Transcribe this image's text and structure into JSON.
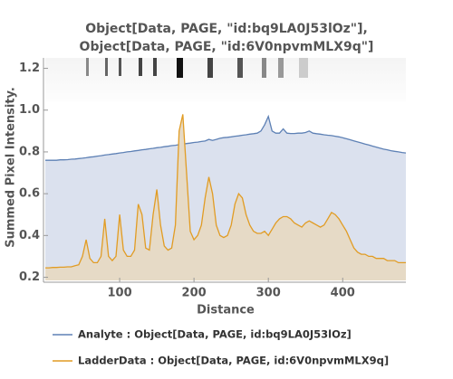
{
  "chart_data": {
    "type": "line",
    "title": [
      "Object[Data, PAGE, \"id:bq9LA0J53lOz\"],",
      "Object[Data, PAGE, \"id:6V0npvmMLX9q\"]"
    ],
    "x_label": "Distance",
    "y_label": "Summed Pixel Intensity.",
    "x": [
      0,
      5,
      10,
      15,
      20,
      25,
      30,
      35,
      40,
      45,
      50,
      55,
      60,
      65,
      70,
      75,
      80,
      85,
      90,
      95,
      100,
      105,
      110,
      115,
      120,
      125,
      130,
      135,
      140,
      145,
      150,
      155,
      160,
      165,
      170,
      175,
      180,
      185,
      190,
      195,
      200,
      205,
      210,
      215,
      220,
      225,
      230,
      235,
      240,
      245,
      250,
      255,
      260,
      265,
      270,
      275,
      280,
      285,
      290,
      295,
      300,
      305,
      310,
      315,
      320,
      325,
      330,
      335,
      340,
      345,
      350,
      355,
      360,
      365,
      370,
      375,
      380,
      385,
      390,
      395,
      400,
      405,
      410,
      415,
      420,
      425,
      430,
      435,
      440,
      445,
      450,
      455,
      460,
      465,
      470,
      475,
      480,
      485
    ],
    "series": [
      {
        "name": "Analyte : Object[Data, PAGE, id:bq9LA0J53lOz]",
        "color": "#5e81b5",
        "fill": "#dbe1ee",
        "values": [
          0.76,
          0.76,
          0.76,
          0.76,
          0.762,
          0.762,
          0.763,
          0.765,
          0.766,
          0.768,
          0.77,
          0.772,
          0.775,
          0.777,
          0.78,
          0.782,
          0.785,
          0.787,
          0.79,
          0.792,
          0.795,
          0.797,
          0.8,
          0.802,
          0.805,
          0.807,
          0.81,
          0.812,
          0.815,
          0.817,
          0.82,
          0.822,
          0.825,
          0.827,
          0.83,
          0.832,
          0.835,
          0.837,
          0.84,
          0.842,
          0.845,
          0.847,
          0.85,
          0.852,
          0.86,
          0.855,
          0.86,
          0.865,
          0.868,
          0.87,
          0.872,
          0.875,
          0.877,
          0.88,
          0.882,
          0.885,
          0.887,
          0.89,
          0.9,
          0.93,
          0.97,
          0.9,
          0.89,
          0.89,
          0.91,
          0.89,
          0.888,
          0.888,
          0.89,
          0.89,
          0.893,
          0.9,
          0.89,
          0.887,
          0.885,
          0.882,
          0.88,
          0.878,
          0.875,
          0.872,
          0.868,
          0.863,
          0.858,
          0.853,
          0.848,
          0.843,
          0.838,
          0.833,
          0.828,
          0.823,
          0.818,
          0.813,
          0.81,
          0.806,
          0.803,
          0.8,
          0.797,
          0.795
        ]
      },
      {
        "name": "LadderData : Object[Data, PAGE, id:6V0npvmMLX9q]",
        "color": "#e19c24",
        "fill": "#e6dac6",
        "values": [
          0.245,
          0.245,
          0.247,
          0.247,
          0.248,
          0.248,
          0.25,
          0.25,
          0.255,
          0.26,
          0.3,
          0.38,
          0.29,
          0.27,
          0.27,
          0.3,
          0.48,
          0.3,
          0.28,
          0.3,
          0.5,
          0.33,
          0.3,
          0.3,
          0.33,
          0.55,
          0.5,
          0.34,
          0.33,
          0.5,
          0.62,
          0.45,
          0.35,
          0.33,
          0.34,
          0.45,
          0.9,
          0.98,
          0.7,
          0.42,
          0.38,
          0.4,
          0.45,
          0.58,
          0.68,
          0.6,
          0.45,
          0.4,
          0.39,
          0.4,
          0.45,
          0.55,
          0.6,
          0.58,
          0.5,
          0.45,
          0.42,
          0.41,
          0.41,
          0.42,
          0.4,
          0.43,
          0.46,
          0.48,
          0.49,
          0.49,
          0.48,
          0.46,
          0.45,
          0.44,
          0.46,
          0.47,
          0.46,
          0.45,
          0.44,
          0.45,
          0.48,
          0.51,
          0.5,
          0.48,
          0.45,
          0.42,
          0.38,
          0.34,
          0.32,
          0.31,
          0.31,
          0.3,
          0.3,
          0.29,
          0.29,
          0.29,
          0.28,
          0.28,
          0.28,
          0.27,
          0.27,
          0.27
        ]
      }
    ],
    "xlim": [
      0,
      485
    ],
    "xticks": [
      100,
      200,
      300,
      400
    ],
    "ylim": [
      0.185,
      1.25
    ],
    "yticks": [
      0.2,
      0.4,
      0.6,
      {
        "value": 1.0,
        "label": "1.0"
      },
      0.8,
      1.2
    ]
  }
}
